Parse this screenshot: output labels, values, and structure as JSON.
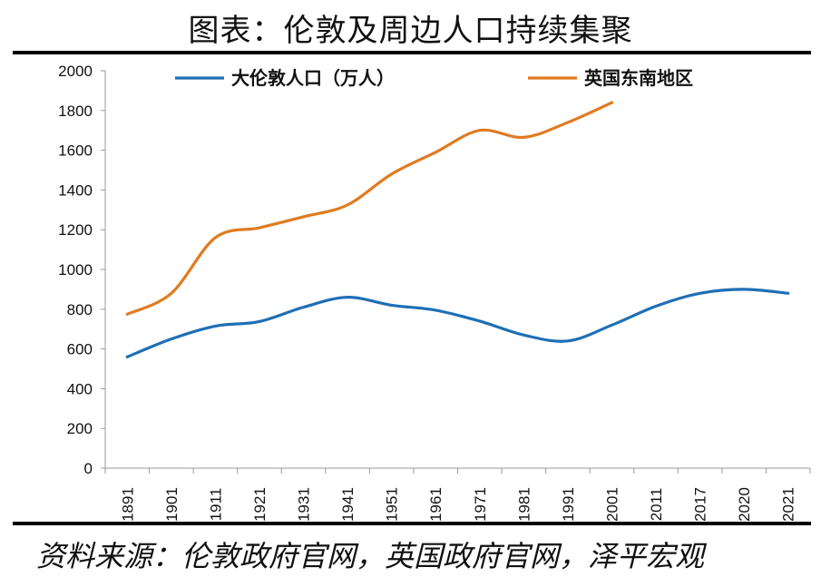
{
  "title": "图表：伦敦及周边人口持续集聚",
  "source": "资料来源：伦敦政府官网，英国政府官网，泽平宏观",
  "chart_data": {
    "type": "line",
    "categories": [
      "1891",
      "1901",
      "1911",
      "1921",
      "1931",
      "1941",
      "1951",
      "1961",
      "1971",
      "1981",
      "1991",
      "2001",
      "2011",
      "2017",
      "2020",
      "2021"
    ],
    "ylim": [
      0,
      2000
    ],
    "yticks": [
      0,
      200,
      400,
      600,
      800,
      1000,
      1200,
      1400,
      1600,
      1800,
      2000
    ],
    "grid": false,
    "legend_position": "top",
    "series": [
      {
        "name": "大伦敦人口（万人）",
        "color": "#1f6fb5",
        "values": [
          560,
          650,
          715,
          738,
          810,
          860,
          820,
          795,
          740,
          670,
          640,
          720,
          815,
          880,
          900,
          880
        ]
      },
      {
        "name": "英国东南地区",
        "color": "#e07b20",
        "values": [
          775,
          880,
          1160,
          1210,
          1265,
          1325,
          1480,
          1590,
          1700,
          1665,
          1740,
          1840,
          null,
          null,
          null,
          null
        ]
      }
    ]
  }
}
